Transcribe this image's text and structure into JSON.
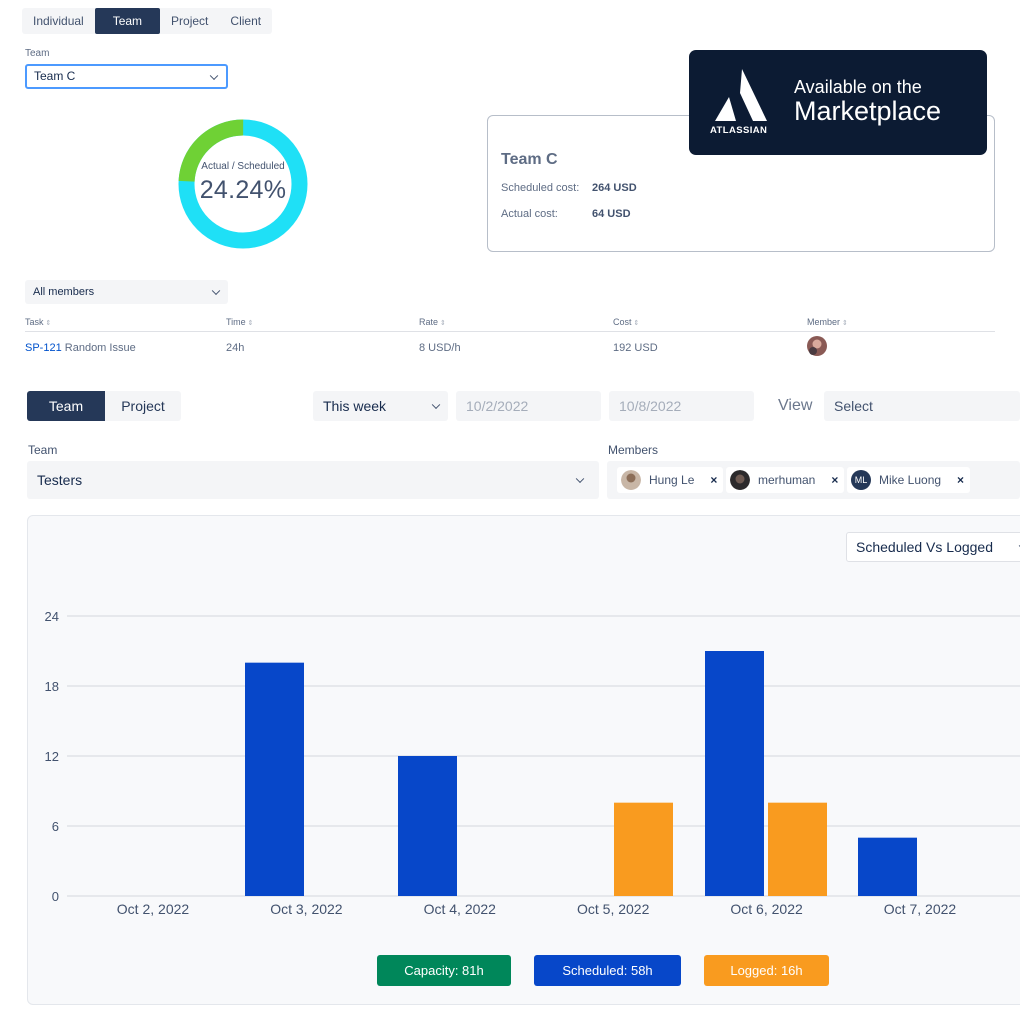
{
  "top_tabs": [
    "Individual",
    "Team",
    "Project",
    "Client"
  ],
  "team_filter": {
    "label": "Team",
    "value": "Team C"
  },
  "donut": {
    "label": "Actual / Scheduled",
    "value": "24.24%",
    "percent": 24.24,
    "colors": {
      "actual": "#6fd135",
      "scheduled": "#1fe0f6"
    }
  },
  "cost_card": {
    "title": "Team C",
    "scheduled_label": "Scheduled cost:",
    "scheduled_value": "264 USD",
    "actual_label": "Actual cost:",
    "actual_value": "64 USD"
  },
  "marketplace_badge": {
    "line1": "Available on the",
    "line2": "Marketplace",
    "brand": "ATLASSIAN"
  },
  "members_filter": {
    "value": "All members"
  },
  "task_table": {
    "headers": [
      "Task",
      "Time",
      "Rate",
      "Cost",
      "Member"
    ],
    "rows": [
      {
        "key": "SP-121",
        "summary": "Random Issue",
        "time": "24h",
        "rate": "8 USD/h",
        "cost": "192 USD"
      }
    ]
  },
  "panel": {
    "toggle": [
      "Team",
      "Project"
    ],
    "period": "This week",
    "start_date": "10/2/2022",
    "end_date": "10/8/2022",
    "view_label": "View",
    "view_select": "Select",
    "team_label": "Team",
    "team_value": "Testers",
    "members_label": "Members",
    "members": [
      {
        "name": "Hung Le",
        "initials": ""
      },
      {
        "name": "merhuman",
        "initials": ""
      },
      {
        "name": "Mike Luong",
        "initials": "ML"
      }
    ],
    "chart_mode": "Scheduled Vs Logged"
  },
  "colors": {
    "navy": "#253858",
    "scheduled": "#0747c9",
    "logged": "#f99b1f",
    "capacity": "#00875a",
    "link": "#0052cc"
  },
  "chart_data": {
    "type": "bar",
    "categories": [
      "Oct 2, 2022",
      "Oct 3, 2022",
      "Oct 4, 2022",
      "Oct 5, 2022",
      "Oct 6, 2022",
      "Oct 7, 2022"
    ],
    "series": [
      {
        "name": "Scheduled",
        "color": "#0747c9",
        "values": [
          0,
          20,
          12,
          0,
          21,
          5
        ]
      },
      {
        "name": "Logged",
        "color": "#f99b1f",
        "values": [
          0,
          0,
          0,
          8,
          8,
          0
        ]
      }
    ],
    "ylim": [
      0,
      24
    ],
    "yticks": [
      0,
      6,
      12,
      18,
      24
    ],
    "grid": true,
    "legend_position": "bottom",
    "legend": [
      {
        "label": "Capacity: 81h",
        "color": "#00875a"
      },
      {
        "label": "Scheduled: 58h",
        "color": "#0747c9"
      },
      {
        "label": "Logged: 16h",
        "color": "#f99b1f"
      }
    ]
  }
}
